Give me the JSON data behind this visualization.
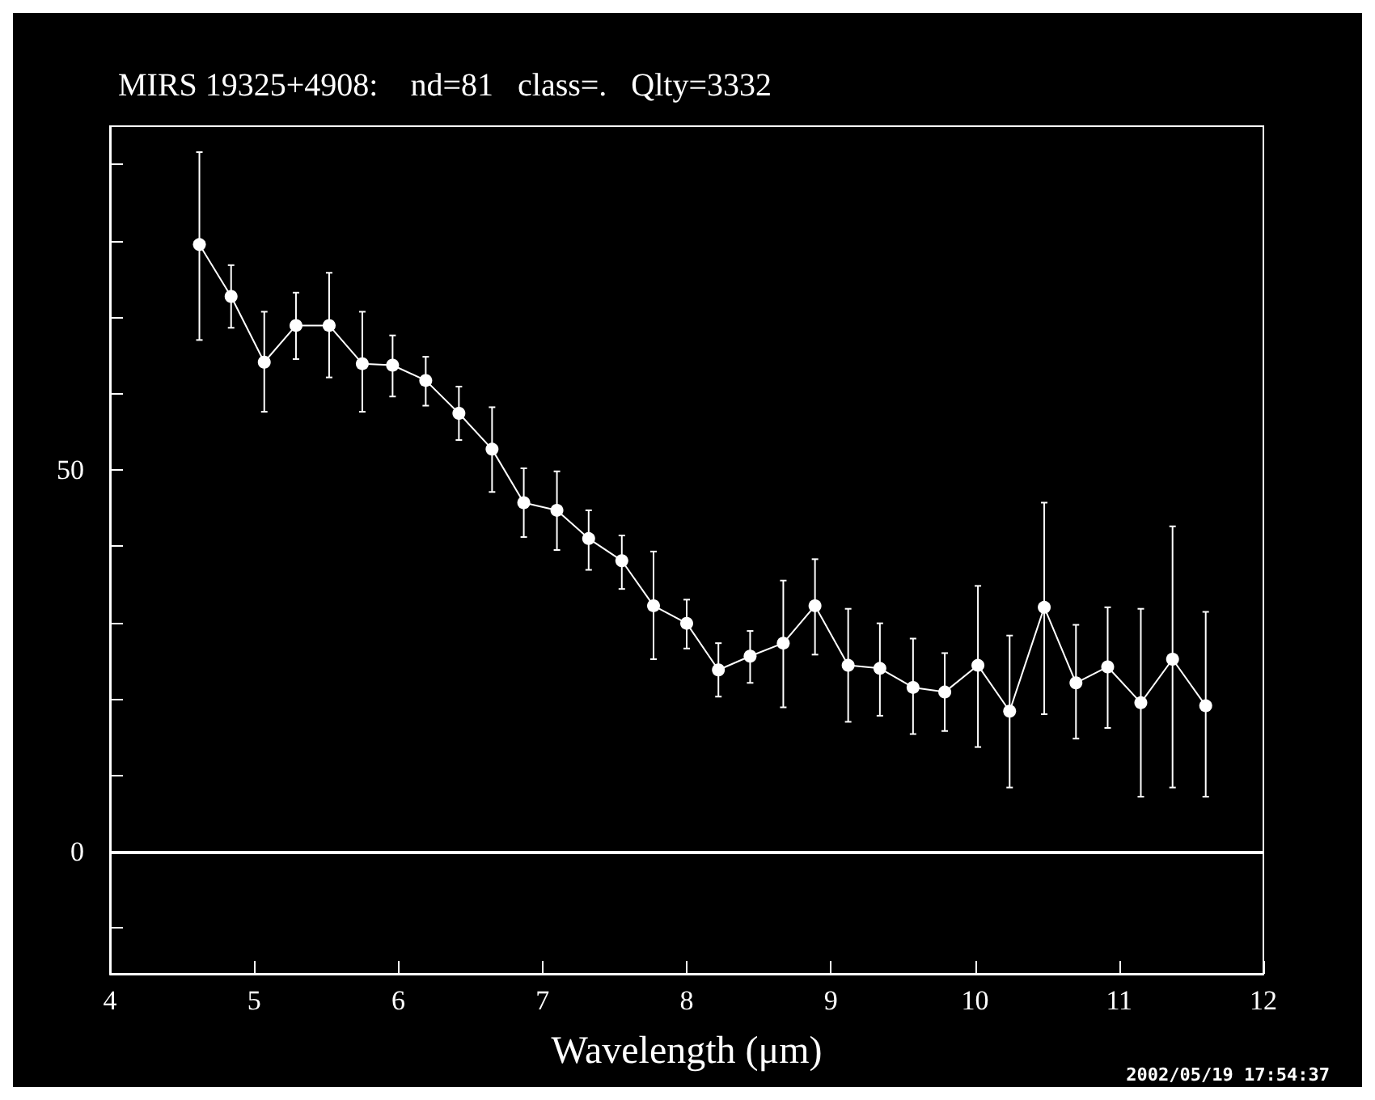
{
  "chart_data": {
    "type": "line",
    "title": "MIRS 19325+4908:    nd=81   class=.   Qlty=3332",
    "xlabel": "Wavelength (μm)",
    "annotations": [
      "2002/05/19 17:54:37"
    ],
    "x": [
      4.62,
      4.84,
      5.07,
      5.29,
      5.52,
      5.75,
      5.96,
      6.19,
      6.42,
      6.65,
      6.87,
      7.1,
      7.32,
      7.55,
      7.77,
      8.0,
      8.22,
      8.44,
      8.67,
      8.89,
      9.12,
      9.34,
      9.57,
      9.79,
      10.02,
      10.24,
      10.48,
      10.7,
      10.92,
      11.15,
      11.37,
      11.6
    ],
    "series": [
      {
        "color": "#ffffff",
        "values": [
          79.5,
          72.7,
          64.1,
          68.9,
          68.9,
          63.9,
          63.7,
          61.7,
          57.4,
          52.7,
          45.7,
          44.7,
          41.0,
          38.1,
          32.2,
          29.9,
          23.8,
          25.6,
          27.3,
          32.2,
          24.4,
          24.0,
          21.5,
          20.9,
          24.4,
          18.4,
          32.0,
          22.1,
          24.2,
          19.5,
          25.2,
          19.1
        ],
        "errors": [
          [
            67.0,
            91.6
          ],
          [
            68.6,
            76.8
          ],
          [
            57.6,
            70.7
          ],
          [
            64.5,
            73.2
          ],
          [
            62.1,
            75.8
          ],
          [
            57.6,
            70.7
          ],
          [
            59.6,
            67.6
          ],
          [
            58.4,
            64.8
          ],
          [
            53.9,
            60.9
          ],
          [
            47.1,
            58.2
          ],
          [
            41.2,
            50.2
          ],
          [
            39.5,
            49.8
          ],
          [
            36.9,
            44.7
          ],
          [
            34.4,
            41.4
          ],
          [
            25.2,
            39.3
          ],
          [
            26.6,
            33.0
          ],
          [
            20.3,
            27.3
          ],
          [
            22.1,
            28.9
          ],
          [
            18.9,
            35.5
          ],
          [
            25.8,
            38.3
          ],
          [
            17.0,
            31.8
          ],
          [
            17.8,
            29.9
          ],
          [
            15.4,
            27.9
          ],
          [
            15.8,
            26.0
          ],
          [
            13.7,
            34.8
          ],
          [
            8.4,
            28.3
          ],
          [
            18.0,
            45.7
          ],
          [
            14.8,
            29.7
          ],
          [
            16.2,
            32.0
          ],
          [
            7.2,
            31.8
          ],
          [
            8.4,
            42.6
          ],
          [
            7.2,
            31.4
          ]
        ]
      }
    ],
    "xlim": [
      4,
      12
    ],
    "xticks": [
      4,
      5,
      6,
      7,
      8,
      9,
      10,
      11,
      12
    ],
    "ylim": [
      -16,
      95
    ],
    "yticks": [
      {
        "value": -10,
        "label": null
      },
      0,
      {
        "value": 10,
        "label": null
      },
      {
        "value": 20,
        "label": null
      },
      {
        "value": 30,
        "label": null
      },
      {
        "value": 40,
        "label": null
      },
      50,
      {
        "value": 60,
        "label": null
      },
      {
        "value": 70,
        "label": null
      },
      {
        "value": 80,
        "label": null
      },
      {
        "value": 90,
        "label": null
      }
    ],
    "ref_lines": [
      {
        "axis": "y",
        "value": 0,
        "color": "#ffffff"
      }
    ],
    "marker": "circle",
    "line_style": "solid",
    "grid": false
  }
}
